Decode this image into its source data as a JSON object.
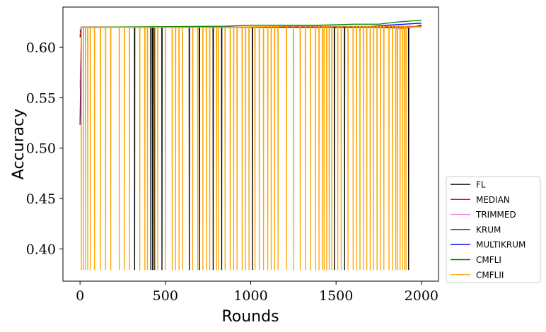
{
  "chart_data": {
    "type": "line",
    "xlabel": "Rounds",
    "ylabel": "Accuracy",
    "xlim": [
      -100,
      2100
    ],
    "ylim": [
      0.368,
      0.64
    ],
    "xticks": [
      0,
      500,
      1000,
      1500,
      2000
    ],
    "xtick_labels": [
      "0",
      "500",
      "1000",
      "1500",
      "2000"
    ],
    "yticks": [
      0.4,
      0.45,
      0.5,
      0.55,
      0.6
    ],
    "ytick_labels": [
      "0.40",
      "0.45",
      "0.50",
      "0.55",
      "0.60"
    ],
    "grid": false,
    "legend_position": "lower-right-outside",
    "drop_value": 0.379,
    "series": [
      {
        "name": "FL",
        "color": "#000000",
        "points": [
          [
            0,
            0.61
          ],
          [
            8,
            0.62
          ],
          [
            850,
            0.62
          ],
          [
            1500,
            0.62
          ],
          [
            1700,
            0.62
          ],
          [
            1900,
            0.619
          ],
          [
            2000,
            0.622
          ]
        ],
        "drop_rounds": [
          320,
          415,
          425,
          435,
          480,
          640,
          700,
          780,
          830,
          1010,
          1490,
          1550,
          1925
        ]
      },
      {
        "name": "MEDIAN",
        "color": "#ff0000",
        "points": [
          [
            0,
            0.612
          ],
          [
            8,
            0.62
          ],
          [
            850,
            0.62
          ],
          [
            1600,
            0.62
          ],
          [
            1800,
            0.62
          ],
          [
            1900,
            0.619
          ],
          [
            2000,
            0.621
          ]
        ],
        "drop_rounds": []
      },
      {
        "name": "TRIMMED",
        "color": "#ee82ee",
        "points": [
          [
            0,
            0.56
          ],
          [
            8,
            0.62
          ],
          [
            850,
            0.62
          ],
          [
            1600,
            0.62
          ],
          [
            2000,
            0.62
          ]
        ],
        "drop_rounds": []
      },
      {
        "name": "KRUM",
        "color": "#4b0082",
        "points": [
          [
            0,
            0.523
          ],
          [
            8,
            0.62
          ],
          [
            850,
            0.62
          ],
          [
            1600,
            0.62
          ],
          [
            2000,
            0.621
          ]
        ],
        "drop_rounds": []
      },
      {
        "name": "MULTIKRUM",
        "color": "#0000ff",
        "points": [
          [
            0,
            0.615
          ],
          [
            8,
            0.62
          ],
          [
            850,
            0.62
          ],
          [
            1700,
            0.621
          ],
          [
            1800,
            0.622
          ],
          [
            1900,
            0.623
          ],
          [
            2000,
            0.624
          ]
        ],
        "drop_rounds": []
      },
      {
        "name": "CMFLI",
        "color": "#008000",
        "points": [
          [
            0,
            0.618
          ],
          [
            8,
            0.62
          ],
          [
            850,
            0.621
          ],
          [
            1000,
            0.622
          ],
          [
            1200,
            0.622
          ],
          [
            1400,
            0.622
          ],
          [
            1600,
            0.623
          ],
          [
            1750,
            0.623
          ],
          [
            1850,
            0.625
          ],
          [
            2000,
            0.627
          ]
        ],
        "drop_rounds": []
      },
      {
        "name": "CMFLII",
        "color": "#ffa500",
        "points": [
          [
            0,
            0.618
          ],
          [
            8,
            0.62
          ],
          [
            850,
            0.62
          ],
          [
            1200,
            0.621
          ],
          [
            1700,
            0.621
          ],
          [
            2000,
            0.621
          ]
        ],
        "drop_rounds": [
          8,
          20,
          32,
          45,
          60,
          85,
          120,
          150,
          180,
          230,
          260,
          290,
          350,
          380,
          395,
          440,
          455,
          500,
          540,
          560,
          580,
          600,
          660,
          690,
          720,
          740,
          760,
          800,
          810,
          850,
          880,
          900,
          920,
          950,
          970,
          990,
          1025,
          1050,
          1075,
          1100,
          1120,
          1140,
          1160,
          1210,
          1250,
          1290,
          1320,
          1350,
          1380,
          1400,
          1420,
          1430,
          1445,
          1460,
          1475,
          1510,
          1530,
          1570,
          1600,
          1620,
          1640,
          1660,
          1680,
          1700,
          1720,
          1740,
          1760,
          1780,
          1810,
          1830,
          1850,
          1860,
          1875,
          1890,
          1900,
          1910
        ]
      }
    ]
  }
}
